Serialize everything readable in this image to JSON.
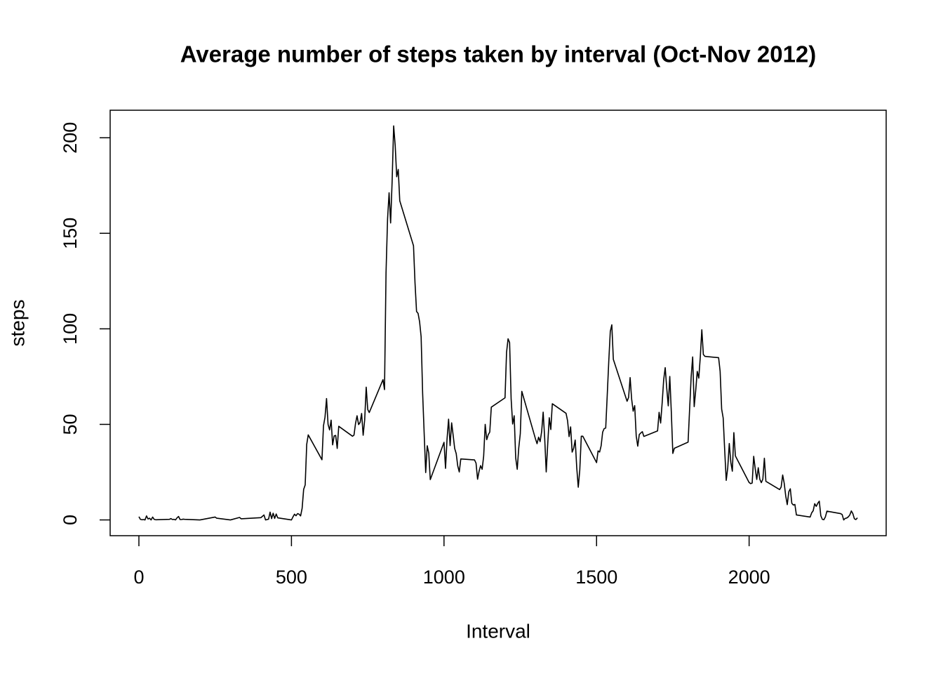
{
  "chart_data": {
    "type": "line",
    "title": "Average number of steps taken by interval (Oct-Nov 2012)",
    "xlabel": "Interval",
    "ylabel": "steps",
    "xlim": [
      -94.2,
      2449.2
    ],
    "ylim": [
      -8.25,
      214.4
    ],
    "xticks": [
      0,
      500,
      1000,
      1500,
      2000
    ],
    "yticks": [
      0,
      50,
      100,
      150,
      200
    ],
    "grid": false,
    "x": [
      0,
      5,
      10,
      15,
      20,
      25,
      30,
      35,
      40,
      45,
      50,
      55,
      100,
      105,
      110,
      115,
      120,
      125,
      130,
      135,
      140,
      145,
      150,
      200,
      250,
      255,
      300,
      330,
      335,
      400,
      410,
      415,
      425,
      430,
      435,
      440,
      445,
      450,
      455,
      500,
      505,
      510,
      515,
      520,
      525,
      530,
      535,
      540,
      545,
      550,
      555,
      600,
      605,
      610,
      615,
      620,
      625,
      630,
      635,
      640,
      645,
      650,
      655,
      700,
      705,
      710,
      715,
      720,
      725,
      730,
      735,
      740,
      745,
      750,
      755,
      800,
      805,
      810,
      815,
      820,
      825,
      830,
      835,
      840,
      845,
      850,
      855,
      900,
      905,
      910,
      915,
      920,
      925,
      930,
      935,
      940,
      945,
      950,
      955,
      1000,
      1005,
      1010,
      1015,
      1020,
      1025,
      1030,
      1035,
      1040,
      1045,
      1050,
      1055,
      1100,
      1105,
      1110,
      1115,
      1120,
      1125,
      1130,
      1135,
      1140,
      1145,
      1150,
      1155,
      1200,
      1205,
      1210,
      1215,
      1220,
      1225,
      1230,
      1235,
      1240,
      1245,
      1250,
      1255,
      1300,
      1305,
      1310,
      1315,
      1320,
      1325,
      1330,
      1335,
      1340,
      1345,
      1350,
      1355,
      1400,
      1405,
      1410,
      1415,
      1420,
      1425,
      1430,
      1435,
      1440,
      1445,
      1450,
      1455,
      1500,
      1505,
      1510,
      1515,
      1520,
      1525,
      1530,
      1535,
      1540,
      1545,
      1550,
      1555,
      1600,
      1605,
      1610,
      1615,
      1620,
      1625,
      1630,
      1635,
      1640,
      1645,
      1650,
      1655,
      1700,
      1705,
      1710,
      1715,
      1720,
      1725,
      1730,
      1735,
      1740,
      1745,
      1750,
      1755,
      1800,
      1805,
      1810,
      1815,
      1820,
      1825,
      1830,
      1835,
      1840,
      1845,
      1850,
      1855,
      1900,
      1905,
      1910,
      1915,
      1920,
      1925,
      1930,
      1935,
      1940,
      1945,
      1950,
      1955,
      2000,
      2005,
      2010,
      2015,
      2020,
      2025,
      2030,
      2035,
      2040,
      2045,
      2050,
      2055,
      2100,
      2105,
      2110,
      2115,
      2120,
      2125,
      2130,
      2135,
      2140,
      2145,
      2150,
      2155,
      2200,
      2205,
      2210,
      2215,
      2220,
      2225,
      2230,
      2235,
      2240,
      2245,
      2250,
      2255,
      2300,
      2305,
      2310,
      2315,
      2320,
      2325,
      2330,
      2335,
      2340,
      2345,
      2350,
      2355
    ],
    "series": [
      {
        "name": "steps",
        "color": "#000000",
        "values": [
          1.7,
          0.3,
          0.1,
          0.2,
          0,
          2.1,
          0.5,
          0.9,
          0,
          1.5,
          0.3,
          0.1,
          0.3,
          0.7,
          0.2,
          0.3,
          0,
          1.1,
          1.8,
          0.2,
          0.2,
          0.4,
          0.3,
          0,
          1.5,
          0.9,
          0,
          1.3,
          0.6,
          1.2,
          2.6,
          0,
          0.4,
          4.1,
          0.7,
          3.5,
          0.8,
          3.1,
          1.1,
          0,
          1.6,
          3,
          2.2,
          3.3,
          3,
          2.1,
          6.1,
          16,
          18.3,
          39.5,
          44.5,
          31.5,
          49.3,
          53.8,
          63.5,
          50,
          47.1,
          52.2,
          39.3,
          44,
          44.2,
          37.4,
          49,
          43.8,
          44.4,
          50.5,
          54.5,
          49.9,
          51,
          55.7,
          44.3,
          52.3,
          69.5,
          57.8,
          56.2,
          73.4,
          68.2,
          129.4,
          157.5,
          171.2,
          155.4,
          177.3,
          206.2,
          195.9,
          179.6,
          183.4,
          167,
          143.5,
          124,
          109.1,
          108.1,
          103.7,
          95.9,
          66.2,
          45.2,
          24.8,
          38.8,
          34.98,
          21.1,
          40.6,
          27,
          42.4,
          52.7,
          38.9,
          50.8,
          44.3,
          37.4,
          34.7,
          28.3,
          25.1,
          31.9,
          31.4,
          29.7,
          21.3,
          25.5,
          28.4,
          26.5,
          33.4,
          50,
          42,
          44.6,
          46,
          59,
          63.9,
          87.7,
          94.8,
          92.8,
          63.4,
          50.2,
          54.5,
          32.4,
          26.5,
          37.7,
          45.1,
          67.3,
          42.3,
          39.9,
          43.3,
          40.98,
          46.2,
          56.4,
          42.8,
          25.1,
          39.9,
          53.5,
          47.3,
          60.8,
          55.8,
          51.9,
          43.6,
          48.7,
          35.5,
          37.5,
          41.8,
          27.5,
          17.1,
          26.1,
          43.8,
          43.8,
          30,
          36.1,
          35.5,
          38.8,
          45.96,
          47.8,
          48.1,
          65.3,
          82.9,
          98.7,
          102.1,
          84,
          62.1,
          64.1,
          74.5,
          63.2,
          56.9,
          59.8,
          43.9,
          38.6,
          44.7,
          45.5,
          46.2,
          43.7,
          46.6,
          56.3,
          50.7,
          61.2,
          73.4,
          79.7,
          68.9,
          59.7,
          75.1,
          56.5,
          34.8,
          37.5,
          40.7,
          58,
          74.7,
          85.3,
          59.3,
          67.8,
          77.7,
          74.2,
          85.3,
          99.5,
          86.6,
          85.6,
          84.9,
          77.8,
          58,
          53.4,
          36.3,
          20.7,
          27.4,
          40,
          30.2,
          25.5,
          45.7,
          33.5,
          19.6,
          19,
          19.3,
          33.3,
          26.8,
          21.2,
          27.3,
          21.3,
          19.5,
          21.3,
          32.3,
          20.2,
          15.9,
          17.2,
          23.5,
          19.2,
          12.5,
          8,
          14.7,
          16.3,
          8.7,
          7.8,
          8.1,
          2.6,
          1.5,
          3.7,
          4.8,
          8.5,
          7.1,
          8.7,
          9.8,
          2.2,
          0.3,
          0.1,
          1.6,
          4.6,
          3.3,
          2.8,
          0,
          0.8,
          1,
          1.6,
          2.6,
          4.7,
          3.3,
          0.6,
          0.2,
          1.1
        ]
      }
    ]
  }
}
